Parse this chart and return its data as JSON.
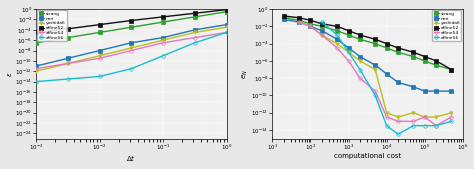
{
  "left_plot": {
    "xlabel": "$\\Delta t$",
    "ylabel": "$\\varepsilon$",
    "xlim_log": [
      -3,
      0
    ],
    "ylim_log": [
      -25,
      0
    ],
    "yticks_log": [
      0,
      -2,
      -4,
      -6,
      -8,
      -10,
      -12,
      -14,
      -16,
      -18,
      -20,
      -22,
      -24
    ],
    "xticks_log": [
      -3,
      -2,
      -1,
      0
    ],
    "series": {
      "strang": {
        "dt": [
          -3,
          -2.5,
          -2,
          -1.5,
          -1,
          -0.5,
          0
        ],
        "err": [
          -6.5,
          -5.5,
          -4.5,
          -3.5,
          -2.5,
          -1.5,
          -0.5
        ],
        "color": "#2ca02c",
        "marker": "s",
        "filled": true,
        "lw": 1.0,
        "ms": 2.5
      },
      "neri": {
        "dt": [
          -3,
          -2.5,
          -2,
          -1.5,
          -1,
          -0.5,
          0
        ],
        "err": [
          -11,
          -9.5,
          -8,
          -6.5,
          -5.5,
          -4.0,
          -3.0
        ],
        "color": "#1f77b4",
        "marker": "s",
        "filled": true,
        "lw": 1.0,
        "ms": 2.5
      },
      "yoshida6": {
        "dt": [
          -3,
          -2.5,
          -2,
          -1.5,
          -1,
          -0.5,
          0
        ],
        "err": [
          -12.0,
          -10.5,
          -9.0,
          -7.5,
          -6.0,
          -4.5,
          -3.5
        ],
        "color": "#bcbd22",
        "marker": "v",
        "filled": true,
        "lw": 1.0,
        "ms": 2.5
      },
      "affine52": {
        "dt": [
          -3,
          -2.5,
          -2,
          -1.5,
          -1,
          -0.5,
          0
        ],
        "err": [
          -4.5,
          -3.8,
          -3.0,
          -2.2,
          -1.5,
          -0.8,
          -0.1
        ],
        "color": "#111111",
        "marker": "s",
        "filled": true,
        "lw": 1.0,
        "ms": 2.5
      },
      "affine54": {
        "dt": [
          -3,
          -2.5,
          -2,
          -1.5,
          -1,
          -0.5,
          0
        ],
        "err": [
          -11.5,
          -10.5,
          -9.5,
          -8.0,
          -6.5,
          -5.5,
          -4.5
        ],
        "color": "#e377c2",
        "marker": "o",
        "filled": false,
        "lw": 1.0,
        "ms": 2.5
      },
      "affine56": {
        "dt": [
          -3,
          -2.5,
          -2,
          -1.5,
          -1,
          -0.5,
          0
        ],
        "err": [
          -14.0,
          -13.5,
          -13.0,
          -11.5,
          -9.0,
          -6.5,
          -4.5
        ],
        "color": "#17becf",
        "marker": "o",
        "filled": false,
        "lw": 1.0,
        "ms": 2.5
      }
    }
  },
  "right_plot": {
    "xlabel": "computational cost",
    "ylabel": "$e_N$",
    "xlim_log": [
      1,
      6
    ],
    "ylim_log": [
      -15,
      0
    ],
    "yticks_log": [
      0,
      -2,
      -4,
      -6,
      -8,
      -10,
      -12,
      -14
    ],
    "xticks_log": [
      1,
      2,
      3,
      4,
      5,
      6
    ],
    "series": {
      "strang": {
        "cost": [
          1.3,
          1.7,
          2.0,
          2.3,
          2.7,
          3.0,
          3.3,
          3.7,
          4.0,
          4.3,
          4.7,
          5.0,
          5.3,
          5.7
        ],
        "err": [
          -1.0,
          -1.3,
          -1.7,
          -2.0,
          -2.5,
          -3.0,
          -3.5,
          -4.0,
          -4.5,
          -5.0,
          -5.5,
          -6.0,
          -6.5,
          -7.0
        ],
        "color": "#2ca02c",
        "marker": "s",
        "filled": true,
        "lw": 1.0,
        "ms": 2.5
      },
      "neri": {
        "cost": [
          1.3,
          1.7,
          2.0,
          2.3,
          2.7,
          3.0,
          3.3,
          3.7,
          4.0,
          4.3,
          4.7,
          5.0,
          5.3,
          5.7
        ],
        "err": [
          -1.2,
          -1.5,
          -2.0,
          -2.5,
          -3.5,
          -4.5,
          -5.5,
          -6.5,
          -7.5,
          -8.5,
          -9.0,
          -9.5,
          -9.5,
          -9.5
        ],
        "color": "#1f77b4",
        "marker": "s",
        "filled": true,
        "lw": 1.0,
        "ms": 2.5
      },
      "yoshida6": {
        "cost": [
          1.7,
          2.0,
          2.3,
          2.7,
          3.0,
          3.3,
          3.7,
          4.0,
          4.3,
          4.7,
          5.0,
          5.3,
          5.7
        ],
        "err": [
          -1.5,
          -2.0,
          -3.0,
          -4.0,
          -5.0,
          -6.0,
          -7.0,
          -12.0,
          -12.5,
          -12.0,
          -12.5,
          -12.5,
          -12.0
        ],
        "color": "#bcbd22",
        "marker": "v",
        "filled": true,
        "lw": 1.0,
        "ms": 2.5
      },
      "affine52": {
        "cost": [
          1.3,
          1.7,
          2.0,
          2.3,
          2.7,
          3.0,
          3.3,
          3.7,
          4.0,
          4.3,
          4.7,
          5.0,
          5.3,
          5.7
        ],
        "err": [
          -0.8,
          -1.0,
          -1.3,
          -1.7,
          -2.0,
          -2.5,
          -3.0,
          -3.5,
          -4.0,
          -4.5,
          -5.0,
          -5.5,
          -6.0,
          -7.0
        ],
        "color": "#111111",
        "marker": "s",
        "filled": true,
        "lw": 1.0,
        "ms": 2.5
      },
      "affine54": {
        "cost": [
          1.7,
          2.0,
          2.3,
          2.7,
          3.0,
          3.3,
          3.7,
          4.0,
          4.3,
          4.7,
          5.0,
          5.3,
          5.7
        ],
        "err": [
          -1.5,
          -2.0,
          -3.0,
          -4.5,
          -6.0,
          -8.0,
          -9.5,
          -12.5,
          -13.0,
          -13.0,
          -12.5,
          -13.5,
          -12.5
        ],
        "color": "#e377c2",
        "marker": "o",
        "filled": false,
        "lw": 1.0,
        "ms": 2.5
      },
      "affine56": {
        "cost": [
          2.3,
          2.7,
          3.0,
          3.3,
          3.7,
          4.0,
          4.3,
          4.7,
          5.0,
          5.3,
          5.7
        ],
        "err": [
          -1.5,
          -3.0,
          -5.0,
          -7.0,
          -10.0,
          -13.5,
          -14.5,
          -13.5,
          -13.5,
          -13.5,
          -13.0
        ],
        "color": "#17becf",
        "marker": "o",
        "filled": false,
        "lw": 1.0,
        "ms": 2.5
      }
    }
  },
  "legend_labels": [
    "strang",
    "neri",
    "yoshida6",
    "affine52",
    "affine54",
    "affine56"
  ],
  "legend_colors": [
    "#2ca02c",
    "#1f77b4",
    "#bcbd22",
    "#111111",
    "#e377c2",
    "#17becf"
  ],
  "legend_markers": [
    "s",
    "s",
    "v",
    "s",
    "o",
    "o"
  ],
  "legend_filled": [
    true,
    true,
    true,
    true,
    false,
    false
  ],
  "bg_color": "#f0f0f0",
  "fig_bg": "#e8e8e8"
}
